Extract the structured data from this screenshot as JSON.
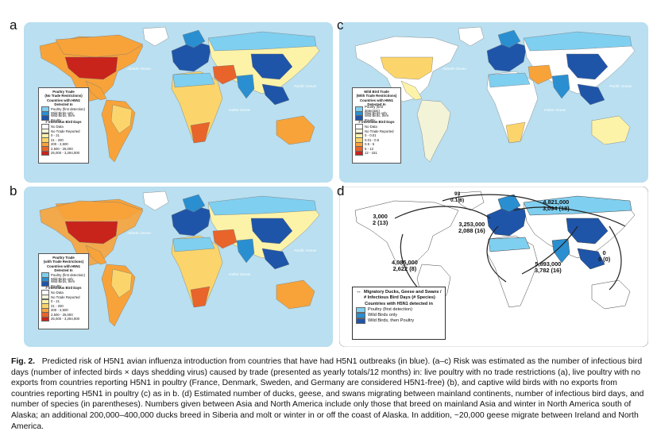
{
  "panels": {
    "a": {
      "label": "a"
    },
    "b": {
      "label": "b"
    },
    "c": {
      "label": "c"
    },
    "d": {
      "label": "d"
    }
  },
  "oceans": {
    "atlantic": "Atlantic Ocean",
    "pacific": "Pacific Ocean",
    "indian": "Indian Ocean"
  },
  "legend_a": {
    "title1": "Poultry Trade",
    "title2": "(No Trade Restrictions)",
    "countries_heading": "Countries with H5N1 Detected In",
    "countries": [
      "Poultry (first detection)",
      "Wild Birds only",
      "Wild Birds, then Poultry"
    ],
    "days_heading": "# Infectious Bird Days",
    "days": [
      "No Data",
      "No Trade Reported",
      "0 - 21",
      "21 - 200",
      "200 - 2,500",
      "2,500 - 25,000",
      "25,000 - 3,294,000"
    ]
  },
  "legend_b": {
    "title1": "Poultry Trade",
    "title2": "(with Trade Restrictions)",
    "countries_heading": "Countries with H5N1 Detected In",
    "countries": [
      "Poultry (first detection)",
      "Wild Birds only",
      "Wild Birds, then Poultry"
    ],
    "days_heading": "# Infectious Bird Days",
    "days": [
      "No Data",
      "No Trade Reported",
      "0 - 21",
      "21 - 200",
      "200 - 2,500",
      "2,500 - 25,000",
      "25,000 - 3,294,000"
    ]
  },
  "legend_c": {
    "title1": "Wild Bird Trade",
    "title2": "(With Trade Restrictions)",
    "countries_heading": "Countries with H5N1 Detected In",
    "countries": [
      "Poultry (first detection)",
      "Wild Birds only",
      "Wild Birds, then Poultry"
    ],
    "days_heading": "# Infectious Bird Days",
    "days": [
      "No Data",
      "No Trade Reported",
      "0 - 0.01",
      "0.01 - 0.5",
      "0.5 - 5",
      "5 - 12",
      "12 - 151"
    ]
  },
  "legend_d": {
    "arrow_text": "Migratory Ducks, Geese and Swans / # Infectious Bird Days (# Species)",
    "countries_heading": "Countries with H5N1 detected in",
    "countries": [
      "Poultry (first detection)",
      "Wild Birds only",
      "Wild Birds, then Poultry"
    ]
  },
  "migration_labels": [
    {
      "days": "3,000",
      "species": "2 (13)"
    },
    {
      "days": "93",
      "species": "0.1(6)"
    },
    {
      "days": "4,821,000",
      "species": "3,094 (18)"
    },
    {
      "days": "3,253,000",
      "species": "2,088 (16)"
    },
    {
      "days": "4,085,000",
      "species": "2,622 (8)"
    },
    {
      "days": "5,893,000",
      "species": "3,782 (16)"
    },
    {
      "days": "0",
      "species": "0 (0)"
    }
  ],
  "caption": {
    "fig": "Fig. 2.",
    "text": "Predicted risk of H5N1 avian influenza introduction from countries that have had H5N1 outbreaks (in blue). (a–c) Risk was estimated as the number of infectious bird days (number of infected birds × days shedding virus) caused by trade (presented as yearly totals/12 months) in: live poultry with no trade restrictions (a), live poultry with no exports from countries reporting H5N1 in poultry (France, Denmark, Sweden, and Germany are considered H5N1-free) (b), and captive wild birds with no exports from countries reporting H5N1 in poultry (c) as in b. (d) Estimated number of ducks, geese, and swans migrating between mainland continents, number of infectious bird days, and number of species (in parentheses). Numbers given between Asia and North America include only those that breed on mainland Asia and winter in North America south of Alaska; an additional 200,000–400,000 ducks breed in Siberia and molt or winter in or off the coast of Alaska. In addition, ~20,000 geese migrate between Ireland and North America."
  },
  "colors": {
    "ocean": "#b9dff0",
    "land": "#ffffff",
    "poultry": "#7fcff0",
    "wild_only": "#2a8fd0",
    "wild_then_poultry": "#1f55a8",
    "days_0": "#ffffff",
    "days_1": "#f3f3d8",
    "days_2": "#fdf3a8",
    "days_3": "#fbd56b",
    "days_4": "#f7a33a",
    "days_5": "#e8642a",
    "days_6": "#c8241c"
  }
}
